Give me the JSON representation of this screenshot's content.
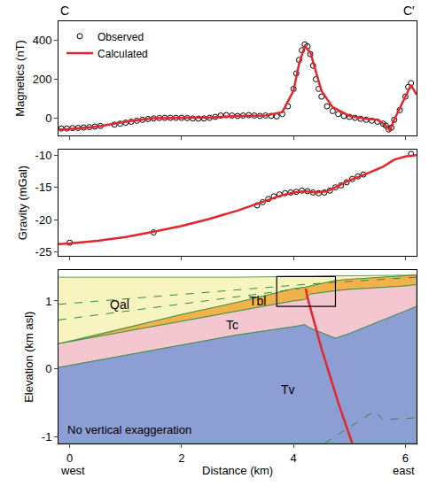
{
  "chart_data": [
    {
      "type": "scatter",
      "profile_labels": [
        "C",
        "C′"
      ],
      "y_label": "Magnetics (nT)",
      "xlim": [
        -0.2,
        6.2
      ],
      "xticks": [
        0,
        2,
        4,
        6
      ],
      "ylim": [
        -90,
        500
      ],
      "yticks": [
        0,
        200,
        400
      ],
      "tick_labels": "y",
      "grid": false,
      "legend": "upper left",
      "series": [
        {
          "name": "Observed",
          "type": "scatter",
          "marker": "open_circle",
          "color": "#000000",
          "x": [
            -0.15,
            -0.05,
            0.05,
            0.15,
            0.25,
            0.35,
            0.45,
            0.55,
            0.8,
            0.9,
            1.0,
            1.1,
            1.2,
            1.3,
            1.4,
            1.5,
            1.6,
            1.7,
            1.8,
            1.9,
            2.0,
            2.1,
            2.2,
            2.3,
            2.4,
            2.5,
            2.6,
            2.7,
            2.8,
            2.9,
            3.0,
            3.1,
            3.2,
            3.3,
            3.4,
            3.5,
            3.6,
            3.7,
            3.8,
            3.9,
            4.0,
            4.05,
            4.1,
            4.15,
            4.2,
            4.25,
            4.3,
            4.35,
            4.4,
            4.45,
            4.5,
            4.6,
            4.7,
            4.8,
            4.9,
            5.0,
            5.1,
            5.2,
            5.3,
            5.4,
            5.5,
            5.6,
            5.65,
            5.7,
            5.75,
            5.8,
            5.9,
            6.0,
            6.05,
            6.1
          ],
          "values": [
            -55,
            -55,
            -53,
            -52,
            -50,
            -48,
            -45,
            -42,
            -35,
            -30,
            -25,
            -20,
            -15,
            -10,
            -6,
            -3,
            -1,
            0,
            0,
            0,
            0,
            -1,
            -3,
            -4,
            -3,
            0,
            5,
            12,
            14,
            12,
            10,
            12,
            14,
            12,
            10,
            12,
            10,
            8,
            20,
            60,
            150,
            230,
            300,
            350,
            380,
            370,
            330,
            270,
            200,
            150,
            110,
            60,
            35,
            20,
            10,
            5,
            0,
            -5,
            -10,
            -15,
            -20,
            -30,
            -40,
            -60,
            -50,
            -10,
            40,
            110,
            160,
            180
          ]
        },
        {
          "name": "Calculated",
          "type": "line",
          "line_style": "solid",
          "color": "#e4262c",
          "x": [
            -0.2,
            0,
            0.5,
            1.0,
            1.5,
            2.0,
            2.5,
            3.0,
            3.5,
            3.8,
            4.0,
            4.1,
            4.2,
            4.3,
            4.4,
            4.5,
            4.7,
            5.0,
            5.3,
            5.5,
            5.65,
            5.72,
            5.8,
            5.95,
            6.1,
            6.2
          ],
          "values": [
            -60,
            -58,
            -45,
            -20,
            -2,
            0,
            2,
            10,
            12,
            30,
            140,
            280,
            370,
            340,
            240,
            140,
            55,
            10,
            -5,
            -10,
            -40,
            -65,
            -10,
            80,
            170,
            120
          ]
        }
      ]
    },
    {
      "type": "scatter",
      "y_label": "Gravity (mGal)",
      "xlim": [
        -0.2,
        6.2
      ],
      "xticks": [
        0,
        2,
        4,
        6
      ],
      "ylim": [
        -25.6,
        -9.2
      ],
      "yticks": [
        -25,
        -20,
        -15,
        -10
      ],
      "tick_labels": "y",
      "grid": false,
      "series": [
        {
          "name": "Observed",
          "type": "scatter",
          "marker": "open_circle",
          "color": "#000000",
          "x": [
            0,
            1.5,
            3.35,
            3.45,
            3.55,
            3.65,
            3.75,
            3.85,
            3.95,
            4.05,
            4.15,
            4.25,
            4.35,
            4.45,
            4.55,
            4.65,
            4.75,
            4.85,
            4.95,
            5.05,
            5.15,
            5.25,
            6.1
          ],
          "values": [
            -23.6,
            -22.0,
            -17.8,
            -17.3,
            -16.8,
            -16.4,
            -16.1,
            -15.9,
            -15.8,
            -15.7,
            -15.5,
            -15.6,
            -15.8,
            -15.9,
            -15.8,
            -15.5,
            -15.0,
            -14.7,
            -14.2,
            -13.7,
            -13.3,
            -13.0,
            -9.8
          ]
        },
        {
          "name": "Calculated",
          "type": "line",
          "line_style": "solid",
          "color": "#e4262c",
          "x": [
            -0.2,
            0,
            0.5,
            1,
            1.5,
            2,
            2.5,
            3,
            3.5,
            3.8,
            4.0,
            4.2,
            4.4,
            4.6,
            4.8,
            5.0,
            5.3,
            5.6,
            5.8,
            6.0,
            6.2
          ],
          "values": [
            -23.8,
            -23.7,
            -23.3,
            -22.7,
            -21.9,
            -21.0,
            -19.9,
            -18.6,
            -17.1,
            -16.2,
            -15.8,
            -15.6,
            -15.8,
            -15.6,
            -14.8,
            -13.9,
            -12.9,
            -11.8,
            -10.7,
            -10.2,
            -10.0
          ]
        }
      ]
    },
    {
      "type": "section",
      "x_label": "Distance (km)",
      "x_end_labels": [
        "west",
        "east"
      ],
      "y_label": "Elevation (km asl)",
      "note": "No vertical exaggeration",
      "xlim": [
        -0.2,
        6.2
      ],
      "xticks": [
        0,
        2,
        4,
        6
      ],
      "ylim": [
        -1.1,
        1.45
      ],
      "yticks": [
        -1,
        0,
        1
      ],
      "grid": false,
      "x": [
        -0.2,
        0,
        1,
        2,
        3,
        4,
        4.2,
        4.3,
        4.75,
        5,
        6,
        6.2
      ],
      "layers": [
        {
          "name": "Qal",
          "color": "#f8f4bf",
          "top": [
            1.35,
            1.35,
            1.35,
            1.35,
            1.35,
            1.36,
            1.36,
            1.36,
            1.37,
            1.37,
            1.38,
            1.38
          ]
        },
        {
          "name": "Tbl",
          "color": "#f0b24a",
          "top": [
            0.37,
            0.4,
            0.6,
            0.8,
            0.98,
            1.18,
            1.2,
            1.22,
            1.3,
            1.32,
            1.37,
            1.38
          ]
        },
        {
          "name": "Tc",
          "color": "#f4c6cf",
          "top": [
            0.37,
            0.4,
            0.55,
            0.7,
            0.85,
            1.0,
            1.02,
            1.1,
            1.15,
            1.17,
            1.22,
            1.24
          ]
        },
        {
          "name": "Tv",
          "color": "#8c9ed4",
          "top": [
            0.02,
            0.05,
            0.2,
            0.35,
            0.5,
            0.62,
            0.65,
            0.6,
            0.45,
            0.52,
            0.85,
            0.92
          ]
        }
      ],
      "lines": [
        {
          "color": "#2e8b3a",
          "line_style": "dash",
          "x": [
            -0.2,
            4.3,
            6.2
          ],
          "y": [
            0.95,
            1.25,
            1.35
          ]
        },
        {
          "color": "#2e8b3a",
          "line_style": "dash",
          "x": [
            -0.2,
            4.1
          ],
          "y": [
            0.72,
            1.18
          ]
        },
        {
          "color": "#2e8b3a",
          "line_style": "dash",
          "x": [
            4.55,
            5.45,
            5.6,
            6.2
          ],
          "y": [
            -1.1,
            -0.62,
            -0.75,
            -0.72
          ]
        },
        {
          "color": "#e4262c",
          "line_style": "solid",
          "x": [
            4.22,
            4.25,
            4.5,
            4.8,
            5.05
          ],
          "y": [
            1.18,
            1.05,
            0.3,
            -0.5,
            -1.1
          ]
        }
      ],
      "box": {
        "x": [
          3.7,
          4.75
        ],
        "y": [
          0.92,
          1.36
        ]
      }
    }
  ]
}
